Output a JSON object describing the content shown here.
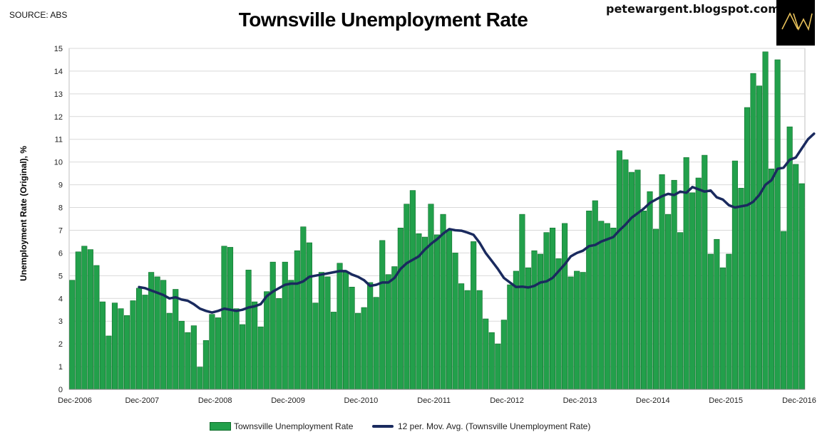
{
  "header": {
    "source": "SOURCE: ABS",
    "title": "Townsville Unemployment Rate",
    "site": "petewargent.blogspot.com",
    "logo_text": "AW"
  },
  "colors": {
    "bar": "#22a04b",
    "bar_edge": "#0f6f2b",
    "line": "#1a2a5e",
    "grid": "#d9d9d9"
  },
  "chart_data": {
    "type": "bar",
    "title": "Townsville Unemployment Rate",
    "xlabel": "",
    "ylabel": "Unemployment Rate (Original), %",
    "ylim": [
      0,
      15
    ],
    "yticks": [
      0,
      1,
      2,
      3,
      4,
      5,
      6,
      7,
      8,
      9,
      10,
      11,
      12,
      13,
      14,
      15
    ],
    "grid": true,
    "legend_position": "bottom",
    "x_tick_labels": [
      "Dec-2006",
      "Dec-2007",
      "Dec-2008",
      "Dec-2009",
      "Dec-2010",
      "Dec-2011",
      "Dec-2012",
      "Dec-2013",
      "Dec-2014",
      "Dec-2015",
      "Dec-2016"
    ],
    "series": [
      {
        "name": "Townsville Unemployment Rate",
        "kind": "bar",
        "values": [
          4.8,
          6.05,
          6.3,
          6.15,
          5.45,
          3.85,
          2.35,
          3.8,
          3.55,
          3.25,
          3.9,
          4.45,
          4.15,
          5.15,
          4.95,
          4.8,
          3.35,
          4.4,
          3.0,
          2.5,
          2.8,
          0.98,
          2.15,
          3.3,
          3.15,
          6.3,
          6.25,
          3.55,
          2.85,
          5.25,
          3.85,
          2.75,
          4.3,
          5.6,
          4.0,
          5.6,
          4.8,
          6.1,
          7.15,
          6.45,
          3.8,
          5.15,
          4.95,
          3.4,
          5.55,
          5.15,
          4.5,
          3.35,
          3.6,
          4.7,
          4.05,
          6.55,
          5.05,
          5.4,
          7.1,
          8.15,
          8.75,
          6.85,
          6.7,
          8.15,
          6.8,
          7.7,
          7.0,
          6.0,
          4.65,
          4.35,
          6.5,
          4.35,
          3.1,
          2.5,
          2.0,
          3.05,
          4.6,
          5.2,
          7.7,
          5.35,
          6.1,
          5.95,
          6.9,
          7.1,
          5.75,
          7.3,
          4.95,
          5.2,
          5.15,
          7.85,
          8.3,
          7.4,
          7.3,
          7.1,
          10.5,
          10.1,
          9.55,
          9.65,
          7.85,
          8.7,
          7.05,
          9.45,
          7.7,
          9.2,
          6.9,
          10.2,
          8.65,
          9.3,
          10.3,
          5.95,
          6.6,
          5.35,
          5.95,
          10.05,
          8.85,
          12.4,
          13.9,
          13.35,
          14.85,
          9.7,
          14.5,
          6.95,
          11.55,
          9.9,
          9.05
        ]
      },
      {
        "name": "12 per. Mov. Avg. (Townsville Unemployment Rate)",
        "kind": "line",
        "start_index": 11,
        "values": [
          4.5,
          4.45,
          4.35,
          4.25,
          4.15,
          4.0,
          4.05,
          3.95,
          3.9,
          3.75,
          3.55,
          3.45,
          3.38,
          3.45,
          3.55,
          3.5,
          3.45,
          3.5,
          3.6,
          3.65,
          3.75,
          4.1,
          4.3,
          4.45,
          4.6,
          4.65,
          4.65,
          4.75,
          4.95,
          5.0,
          5.05,
          5.1,
          5.15,
          5.2,
          5.2,
          5.05,
          4.95,
          4.8,
          4.55,
          4.6,
          4.7,
          4.7,
          4.9,
          5.3,
          5.55,
          5.7,
          5.85,
          6.15,
          6.4,
          6.6,
          6.85,
          7.05,
          7.0,
          6.98,
          6.9,
          6.8,
          6.45,
          6.0,
          5.65,
          5.3,
          4.9,
          4.7,
          4.5,
          4.52,
          4.48,
          4.55,
          4.7,
          4.75,
          4.9,
          5.2,
          5.5,
          5.85,
          6.0,
          6.1,
          6.3,
          6.35,
          6.5,
          6.6,
          6.7,
          7.0,
          7.25,
          7.55,
          7.75,
          7.95,
          8.2,
          8.35,
          8.5,
          8.6,
          8.55,
          8.7,
          8.65,
          8.9,
          8.8,
          8.7,
          8.75,
          8.45,
          8.35,
          8.1,
          8.0,
          8.05,
          8.1,
          8.25,
          8.55,
          9.0,
          9.2,
          9.7,
          9.75,
          10.1,
          10.2,
          10.6,
          11.0,
          11.25
        ]
      }
    ]
  },
  "legend": {
    "bar_label": "Townsville Unemployment Rate",
    "line_label": "12 per. Mov. Avg. (Townsville Unemployment Rate)"
  }
}
